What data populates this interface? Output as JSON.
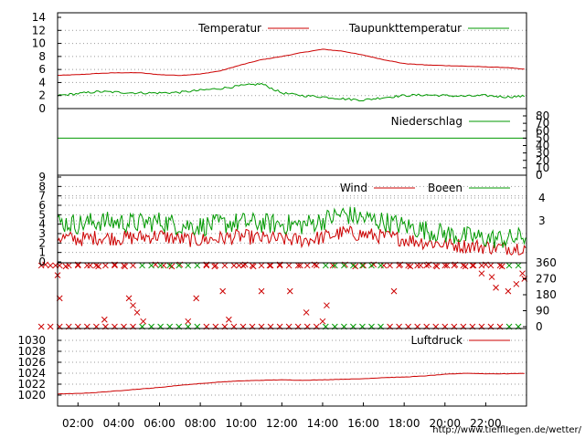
{
  "credit_text": "http://www.tiefflIegen.de/wetter/",
  "x_tick_labels": [
    "02:00",
    "04:00",
    "06:00",
    "08:00",
    "10:00",
    "12:00",
    "14:00",
    "16:00",
    "18:00",
    "20:00",
    "22:00"
  ],
  "chart_data": [
    {
      "id": "temperature",
      "type": "line",
      "ylim": [
        0,
        14
      ],
      "y_ticks": [
        "0",
        "2",
        "4",
        "6",
        "8",
        "10",
        "12",
        "14"
      ],
      "x_hours": [
        0,
        1,
        2,
        3,
        4,
        5,
        6,
        7,
        8,
        9,
        10,
        11,
        12,
        13,
        14,
        15,
        16,
        17,
        18,
        19,
        20,
        21,
        22,
        23,
        24
      ],
      "series": [
        {
          "name": "Temperatur",
          "color": "#cc0000",
          "values": [
            5.3,
            5.1,
            5.2,
            5.4,
            5.5,
            5.5,
            5.2,
            5.1,
            5.3,
            5.8,
            6.7,
            7.5,
            8.0,
            8.6,
            9.1,
            8.8,
            8.2,
            7.5,
            6.9,
            6.7,
            6.6,
            6.5,
            6.4,
            6.3,
            6.0
          ]
        },
        {
          "name": "Taupunkttemperatur",
          "color": "#009900",
          "values": [
            1.5,
            2.0,
            2.3,
            2.6,
            2.5,
            2.4,
            2.4,
            2.5,
            2.8,
            3.1,
            3.5,
            3.8,
            2.4,
            2.0,
            1.8,
            1.5,
            1.3,
            1.7,
            2.0,
            2.1,
            2.0,
            1.9,
            2.0,
            1.8,
            1.9
          ]
        }
      ]
    },
    {
      "id": "precipitation",
      "type": "line",
      "ylim": [
        0,
        80
      ],
      "y_ticks": [
        "0",
        "10",
        "20",
        "30",
        "40",
        "50",
        "60",
        "70",
        "80"
      ],
      "series": [
        {
          "name": "Niederschlag",
          "color": "#009900",
          "constant_value": 50
        }
      ]
    },
    {
      "id": "wind",
      "type": "line",
      "ylim": [
        0,
        9
      ],
      "y_ticks": [
        "0",
        "1",
        "2",
        "3",
        "4",
        "5",
        "6",
        "7",
        "8",
        "9"
      ],
      "right_ticks": [
        "3",
        "4"
      ],
      "x_hours": [
        0,
        1,
        2,
        3,
        4,
        5,
        6,
        7,
        8,
        9,
        10,
        11,
        12,
        13,
        14,
        15,
        16,
        17,
        18,
        19,
        20,
        21,
        22,
        23,
        24
      ],
      "series": [
        {
          "name": "Wind",
          "color": "#cc0000",
          "values": [
            3.0,
            2.6,
            2.4,
            2.6,
            2.5,
            2.6,
            2.8,
            2.4,
            2.3,
            2.5,
            2.7,
            2.5,
            2.4,
            2.3,
            2.6,
            3.1,
            2.9,
            2.7,
            2.4,
            2.1,
            1.9,
            1.7,
            1.6,
            1.5,
            1.6
          ]
        },
        {
          "name": "Boeen",
          "color": "#009900",
          "values": [
            4.6,
            4.2,
            4.0,
            4.3,
            4.2,
            4.1,
            4.3,
            3.9,
            3.8,
            4.0,
            4.2,
            4.1,
            4.0,
            3.9,
            4.4,
            5.1,
            4.6,
            4.3,
            3.8,
            3.4,
            3.0,
            2.7,
            2.5,
            2.4,
            2.7
          ]
        }
      ]
    },
    {
      "id": "wind_direction",
      "type": "scatter",
      "ylim": [
        0,
        360
      ],
      "y_ticks": [
        "0",
        "90",
        "180",
        "270",
        "360"
      ],
      "series": [
        {
          "color": "#cc0000",
          "points": [
            [
              0.4,
              350
            ],
            [
              0.9,
              345
            ],
            [
              1.0,
              290
            ],
            [
              1.1,
              160
            ],
            [
              1.4,
              340
            ],
            [
              2.0,
              350
            ],
            [
              2.6,
              345
            ],
            [
              3.0,
              340
            ],
            [
              3.3,
              40
            ],
            [
              3.8,
              350
            ],
            [
              4.3,
              340
            ],
            [
              4.5,
              160
            ],
            [
              4.7,
              120
            ],
            [
              4.9,
              80
            ],
            [
              5.2,
              30
            ],
            [
              5.8,
              350
            ],
            [
              6.2,
              345
            ],
            [
              6.6,
              340
            ],
            [
              7.0,
              350
            ],
            [
              7.4,
              30
            ],
            [
              7.8,
              160
            ],
            [
              8.3,
              350
            ],
            [
              8.7,
              340
            ],
            [
              9.1,
              200
            ],
            [
              9.4,
              40
            ],
            [
              9.9,
              345
            ],
            [
              10.2,
              350
            ],
            [
              10.6,
              340
            ],
            [
              11.0,
              200
            ],
            [
              11.4,
              345
            ],
            [
              11.9,
              350
            ],
            [
              12.4,
              200
            ],
            [
              12.9,
              345
            ],
            [
              13.2,
              80
            ],
            [
              13.6,
              350
            ],
            [
              14.0,
              30
            ],
            [
              14.2,
              120
            ],
            [
              14.5,
              345
            ],
            [
              15.1,
              350
            ],
            [
              15.6,
              340
            ],
            [
              16.0,
              345
            ],
            [
              16.5,
              350
            ],
            [
              17.0,
              345
            ],
            [
              17.5,
              200
            ],
            [
              17.8,
              350
            ],
            [
              18.3,
              340
            ],
            [
              18.8,
              345
            ],
            [
              19.2,
              350
            ],
            [
              19.6,
              340
            ],
            [
              20.1,
              345
            ],
            [
              20.5,
              350
            ],
            [
              21.0,
              340
            ],
            [
              21.4,
              345
            ],
            [
              21.8,
              300
            ],
            [
              22.0,
              350
            ],
            [
              22.3,
              280
            ],
            [
              22.5,
              220
            ],
            [
              22.8,
              340
            ],
            [
              23.1,
              200
            ],
            [
              23.5,
              240
            ],
            [
              23.8,
              300
            ],
            [
              23.9,
              270
            ]
          ]
        }
      ]
    },
    {
      "id": "pressure",
      "type": "line",
      "ylim": [
        1019,
        1031
      ],
      "y_ticks": [
        "1020",
        "1022",
        "1024",
        "1026",
        "1028",
        "1030"
      ],
      "x_hours": [
        0,
        1,
        2,
        3,
        4,
        5,
        6,
        7,
        8,
        9,
        10,
        11,
        12,
        13,
        14,
        15,
        16,
        17,
        18,
        19,
        20,
        21,
        22,
        23,
        24
      ],
      "series": [
        {
          "name": "Luftdruck",
          "color": "#cc0000",
          "values": [
            1020.4,
            1020.2,
            1020.3,
            1020.5,
            1020.8,
            1021.1,
            1021.4,
            1021.8,
            1022.1,
            1022.4,
            1022.6,
            1022.7,
            1022.8,
            1022.7,
            1022.8,
            1022.9,
            1023.0,
            1023.2,
            1023.3,
            1023.5,
            1023.8,
            1024.0,
            1023.9,
            1023.9,
            1024.0
          ]
        }
      ]
    }
  ]
}
